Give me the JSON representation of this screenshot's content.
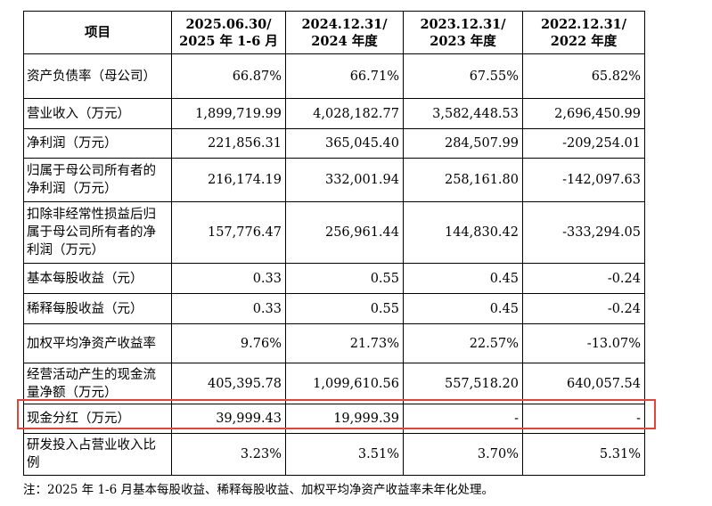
{
  "table": {
    "headers": [
      {
        "line1": "项目",
        "line2": ""
      },
      {
        "line1": "2025.06.30/",
        "line2": "2025 年 1-6 月"
      },
      {
        "line1": "2024.12.31/",
        "line2": "2024 年度"
      },
      {
        "line1": "2023.12.31/",
        "line2": "2023 年度"
      },
      {
        "line1": "2022.12.31/",
        "line2": "2022 年度"
      }
    ],
    "rows": [
      {
        "label": "资产负债率（母公司）",
        "values": [
          "66.87%",
          "66.71%",
          "67.55%",
          "65.82%"
        ]
      },
      {
        "label": "营业收入（万元）",
        "values": [
          "1,899,719.99",
          "4,028,182.77",
          "3,582,448.53",
          "2,696,450.99"
        ]
      },
      {
        "label": "净利润（万元）",
        "values": [
          "221,856.31",
          "365,045.40",
          "284,507.99",
          "-209,254.01"
        ]
      },
      {
        "label": "归属于母公司所有者的净利润（万元）",
        "values": [
          "216,174.19",
          "332,001.94",
          "258,161.80",
          "-142,097.63"
        ]
      },
      {
        "label": "扣除非经常性损益后归属于母公司所有者的净利润（万元）",
        "values": [
          "157,776.47",
          "256,961.44",
          "144,830.42",
          "-333,294.05"
        ]
      },
      {
        "label": "基本每股收益（元）",
        "values": [
          "0.33",
          "0.55",
          "0.45",
          "-0.24"
        ]
      },
      {
        "label": "稀释每股收益（元）",
        "values": [
          "0.33",
          "0.55",
          "0.45",
          "-0.24"
        ]
      },
      {
        "label": "加权平均净资产收益率",
        "values": [
          "9.76%",
          "21.73%",
          "22.57%",
          "-13.07%"
        ]
      },
      {
        "label": "经营活动产生的现金流量净额（万元）",
        "values": [
          "405,395.78",
          "1,099,610.56",
          "557,518.20",
          "640,057.54"
        ]
      },
      {
        "label": "现金分红（万元）",
        "values": [
          "39,999.43",
          "19,999.39",
          "-",
          "-"
        ]
      },
      {
        "label": "研发投入占营业收入比例",
        "values": [
          "3.23%",
          "3.51%",
          "3.70%",
          "5.31%"
        ]
      }
    ]
  },
  "note": "注：2025 年 1-6 月基本每股收益、稀释每股收益、加权平均净资产收益率未年化处理。",
  "highlight_color": "#e2453a"
}
